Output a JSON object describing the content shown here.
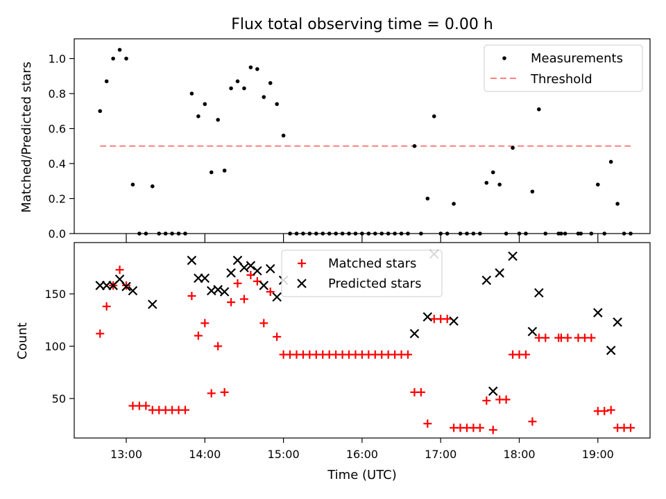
{
  "chart_data": [
    {
      "type": "scatter",
      "title": "Flux total observing time = 0.00 h",
      "xlabel": "",
      "ylabel": "Matched/Predicted stars",
      "ylim": [
        0,
        1.1
      ],
      "yticks": [
        "0.0",
        "0.2",
        "0.4",
        "0.6",
        "0.8",
        "1.0"
      ],
      "legend_position": "top-right",
      "series": [
        {
          "name": "Measurements",
          "marker": "dot",
          "color": "#000000",
          "points": [
            [
              "12:40",
              0.7
            ],
            [
              "12:45",
              0.87
            ],
            [
              "12:50",
              1.0
            ],
            [
              "12:55",
              1.05
            ],
            [
              "13:00",
              1.0
            ],
            [
              "13:05",
              0.28
            ],
            [
              "13:10",
              0.0
            ],
            [
              "13:15",
              0.0
            ],
            [
              "13:20",
              0.27
            ],
            [
              "13:25",
              0.0
            ],
            [
              "13:30",
              0.0
            ],
            [
              "13:35",
              0.0
            ],
            [
              "13:40",
              0.0
            ],
            [
              "13:45",
              0.0
            ],
            [
              "13:50",
              0.8
            ],
            [
              "13:55",
              0.67
            ],
            [
              "14:00",
              0.74
            ],
            [
              "14:05",
              0.35
            ],
            [
              "14:10",
              0.65
            ],
            [
              "14:15",
              0.36
            ],
            [
              "14:20",
              0.83
            ],
            [
              "14:25",
              0.87
            ],
            [
              "14:30",
              0.83
            ],
            [
              "14:35",
              0.95
            ],
            [
              "14:40",
              0.94
            ],
            [
              "14:45",
              0.78
            ],
            [
              "14:50",
              0.86
            ],
            [
              "14:55",
              0.74
            ],
            [
              "15:00",
              0.56
            ],
            [
              "15:05",
              0.0
            ],
            [
              "15:10",
              0.0
            ],
            [
              "15:15",
              0.0
            ],
            [
              "15:20",
              0.0
            ],
            [
              "15:25",
              0.0
            ],
            [
              "15:30",
              0.0
            ],
            [
              "15:35",
              0.0
            ],
            [
              "15:40",
              0.0
            ],
            [
              "15:45",
              0.0
            ],
            [
              "15:50",
              0.0
            ],
            [
              "15:55",
              0.0
            ],
            [
              "16:00",
              0.0
            ],
            [
              "16:05",
              0.0
            ],
            [
              "16:10",
              0.0
            ],
            [
              "16:15",
              0.0
            ],
            [
              "16:20",
              0.0
            ],
            [
              "16:25",
              0.0
            ],
            [
              "16:30",
              0.0
            ],
            [
              "16:35",
              0.0
            ],
            [
              "16:40",
              0.5
            ],
            [
              "16:45",
              0.0
            ],
            [
              "16:50",
              0.2
            ],
            [
              "16:55",
              0.67
            ],
            [
              "17:00",
              0.0
            ],
            [
              "17:05",
              0.0
            ],
            [
              "17:10",
              0.17
            ],
            [
              "17:15",
              0.0
            ],
            [
              "17:20",
              0.0
            ],
            [
              "17:25",
              0.0
            ],
            [
              "17:30",
              0.0
            ],
            [
              "17:35",
              0.29
            ],
            [
              "17:40",
              0.35
            ],
            [
              "17:45",
              0.28
            ],
            [
              "17:50",
              0.0
            ],
            [
              "17:55",
              0.49
            ],
            [
              "18:00",
              0.0
            ],
            [
              "18:05",
              0.0
            ],
            [
              "18:10",
              0.24
            ],
            [
              "18:15",
              0.71
            ],
            [
              "18:20",
              0.0
            ],
            [
              "18:30",
              0.0
            ],
            [
              "18:32",
              0.0
            ],
            [
              "18:35",
              0.0
            ],
            [
              "18:45",
              0.0
            ],
            [
              "18:47",
              0.0
            ],
            [
              "18:55",
              0.0
            ],
            [
              "19:00",
              0.28
            ],
            [
              "19:05",
              0.0
            ],
            [
              "19:10",
              0.41
            ],
            [
              "19:15",
              0.17
            ],
            [
              "19:20",
              0.0
            ],
            [
              "19:25",
              0.0
            ]
          ]
        },
        {
          "name": "Threshold",
          "marker": "dashed-line",
          "color": "#ff7f7f",
          "x": [
            "12:40",
            "19:25"
          ],
          "values": [
            0.5,
            0.5
          ]
        }
      ]
    },
    {
      "type": "scatter",
      "title": "",
      "xlabel": "Time (UTC)",
      "ylabel": "Count",
      "xticks": [
        "13:00",
        "14:00",
        "15:00",
        "16:00",
        "17:00",
        "18:00",
        "19:00"
      ],
      "yticks": [
        "50",
        "100",
        "150"
      ],
      "ylim": [
        13,
        191
      ],
      "legend_position": "top-center",
      "series": [
        {
          "name": "Matched stars",
          "marker": "plus",
          "color": "#ff0000",
          "points": [
            [
              "12:40",
              112
            ],
            [
              "12:45",
              138
            ],
            [
              "12:50",
              158
            ],
            [
              "12:55",
              173
            ],
            [
              "13:00",
              158
            ],
            [
              "13:05",
              43
            ],
            [
              "13:10",
              43
            ],
            [
              "13:15",
              43
            ],
            [
              "13:20",
              39
            ],
            [
              "13:25",
              39
            ],
            [
              "13:30",
              39
            ],
            [
              "13:35",
              39
            ],
            [
              "13:40",
              39
            ],
            [
              "13:45",
              39
            ],
            [
              "13:50",
              148
            ],
            [
              "13:55",
              110
            ],
            [
              "14:00",
              122
            ],
            [
              "14:05",
              55
            ],
            [
              "14:10",
              100
            ],
            [
              "14:15",
              56
            ],
            [
              "14:20",
              142
            ],
            [
              "14:25",
              160
            ],
            [
              "14:30",
              145
            ],
            [
              "14:35",
              168
            ],
            [
              "14:40",
              162
            ],
            [
              "14:45",
              122
            ],
            [
              "14:50",
              152
            ],
            [
              "14:55",
              109
            ],
            [
              "15:00",
              92
            ],
            [
              "15:05",
              92
            ],
            [
              "15:10",
              92
            ],
            [
              "15:15",
              92
            ],
            [
              "15:20",
              92
            ],
            [
              "15:25",
              92
            ],
            [
              "15:30",
              92
            ],
            [
              "15:35",
              92
            ],
            [
              "15:40",
              92
            ],
            [
              "15:45",
              92
            ],
            [
              "15:50",
              92
            ],
            [
              "15:55",
              92
            ],
            [
              "16:00",
              92
            ],
            [
              "16:05",
              92
            ],
            [
              "16:10",
              92
            ],
            [
              "16:15",
              92
            ],
            [
              "16:20",
              92
            ],
            [
              "16:25",
              92
            ],
            [
              "16:30",
              92
            ],
            [
              "16:35",
              92
            ],
            [
              "16:40",
              56
            ],
            [
              "16:45",
              56
            ],
            [
              "16:50",
              26
            ],
            [
              "16:55",
              126
            ],
            [
              "17:00",
              126
            ],
            [
              "17:05",
              126
            ],
            [
              "17:10",
              22
            ],
            [
              "17:15",
              22
            ],
            [
              "17:20",
              22
            ],
            [
              "17:25",
              22
            ],
            [
              "17:30",
              22
            ],
            [
              "17:35",
              48
            ],
            [
              "17:40",
              20
            ],
            [
              "17:45",
              49
            ],
            [
              "17:50",
              49
            ],
            [
              "17:55",
              92
            ],
            [
              "18:00",
              92
            ],
            [
              "18:05",
              92
            ],
            [
              "18:10",
              28
            ],
            [
              "18:15",
              108
            ],
            [
              "18:20",
              108
            ],
            [
              "18:30",
              108
            ],
            [
              "18:32",
              108
            ],
            [
              "18:37",
              108
            ],
            [
              "18:45",
              108
            ],
            [
              "18:50",
              108
            ],
            [
              "18:55",
              108
            ],
            [
              "19:00",
              38
            ],
            [
              "19:05",
              38
            ],
            [
              "19:10",
              39
            ],
            [
              "19:15",
              22
            ],
            [
              "19:20",
              22
            ],
            [
              "19:25",
              22
            ]
          ]
        },
        {
          "name": "Predicted stars",
          "marker": "x",
          "color": "#000000",
          "points": [
            [
              "12:40",
              158
            ],
            [
              "12:45",
              158
            ],
            [
              "12:50",
              158
            ],
            [
              "12:55",
              164
            ],
            [
              "13:00",
              157
            ],
            [
              "13:05",
              153
            ],
            [
              "13:20",
              140
            ],
            [
              "13:50",
              182
            ],
            [
              "13:55",
              165
            ],
            [
              "14:00",
              165
            ],
            [
              "14:05",
              153
            ],
            [
              "14:10",
              154
            ],
            [
              "14:15",
              152
            ],
            [
              "14:20",
              170
            ],
            [
              "14:25",
              182
            ],
            [
              "14:30",
              175
            ],
            [
              "14:35",
              177
            ],
            [
              "14:40",
              172
            ],
            [
              "14:45",
              158
            ],
            [
              "14:50",
              174
            ],
            [
              "14:55",
              147
            ],
            [
              "15:00",
              163
            ],
            [
              "16:40",
              112
            ],
            [
              "16:50",
              128
            ],
            [
              "16:55",
              188
            ],
            [
              "17:10",
              124
            ],
            [
              "17:35",
              163
            ],
            [
              "17:40",
              57
            ],
            [
              "17:45",
              170
            ],
            [
              "17:55",
              186
            ],
            [
              "18:10",
              114
            ],
            [
              "18:15",
              151
            ],
            [
              "19:00",
              132
            ],
            [
              "19:10",
              96
            ],
            [
              "19:15",
              123
            ]
          ]
        }
      ]
    }
  ]
}
